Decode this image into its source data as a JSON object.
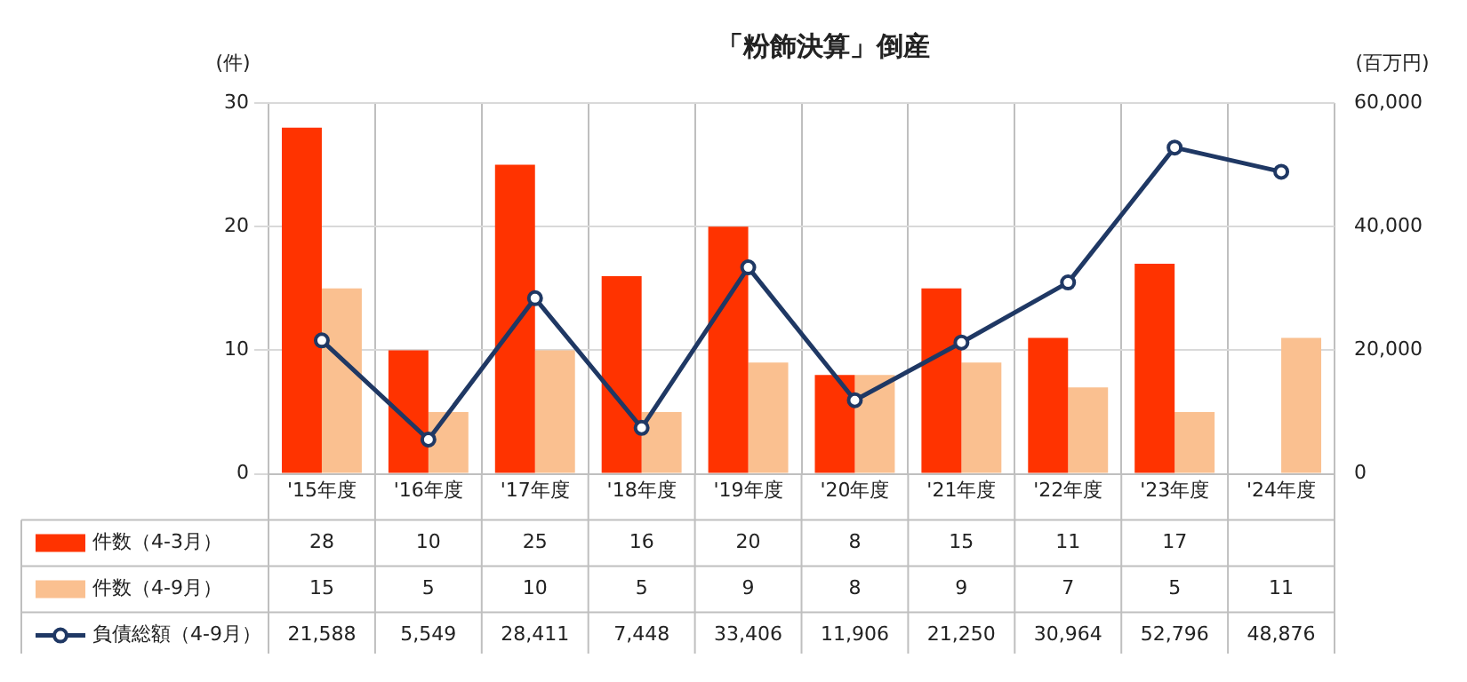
{
  "chart_data": {
    "type": "bar",
    "title": "「粉飾決算」倒産",
    "ylabel": "(件)",
    "y2label": "(百万円)",
    "categories": [
      "'15年度",
      "'16年度",
      "'17年度",
      "'18年度",
      "'19年度",
      "'20年度",
      "'21年度",
      "'22年度",
      "'23年度",
      "'24年度"
    ],
    "series": [
      {
        "name": "件数（4-3月）",
        "color": "#ff3300",
        "values": [
          28,
          10,
          25,
          16,
          20,
          8,
          15,
          11,
          17,
          null
        ],
        "value_labels": [
          "28",
          "10",
          "25",
          "16",
          "20",
          "8",
          "15",
          "11",
          "17",
          null
        ]
      },
      {
        "name": "件数（4-9月）",
        "color": "#fac090",
        "values": [
          15,
          5,
          10,
          5,
          9,
          8,
          9,
          7,
          5,
          11
        ],
        "value_labels": [
          "15",
          "5",
          "10",
          "5",
          "9",
          "8",
          "9",
          "7",
          "5",
          "11"
        ]
      },
      {
        "name": "負債総額（4-9月）",
        "type": "line",
        "axis": "y2",
        "color": "#1f3864",
        "values": [
          21588,
          5549,
          28411,
          7448,
          33406,
          11906,
          21250,
          30964,
          52796,
          48876
        ],
        "value_labels": [
          "21,588",
          "5,549",
          "28,411",
          "7,448",
          "33,406",
          "11,906",
          "21,250",
          "30,964",
          "52,796",
          "48,876"
        ]
      }
    ],
    "ylim": [
      0,
      30
    ],
    "yticks": [
      0,
      10,
      20,
      30
    ],
    "y2lim": [
      0,
      60000
    ],
    "y2ticks": [
      0,
      {
        "value": 20000,
        "label": "20,000"
      },
      {
        "value": 40000,
        "label": "40,000"
      },
      {
        "value": 60000,
        "label": "60,000"
      }
    ],
    "grid": true,
    "legend": "bottom left",
    "marker": "circle",
    "line_style": "solid"
  }
}
